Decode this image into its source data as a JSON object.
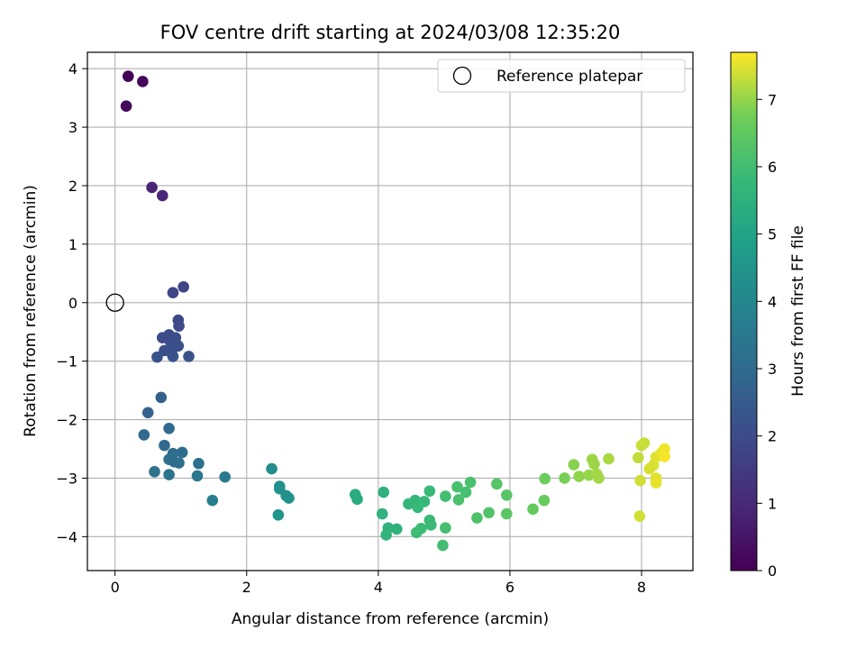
{
  "chart_data": {
    "type": "scatter",
    "title": "FOV centre drift starting at 2024/03/08 12:35:20",
    "xlabel": "Angular distance from reference (arcmin)",
    "ylabel": "Rotation from reference (arcmin)",
    "xlim": [
      -0.42,
      8.78
    ],
    "ylim": [
      -4.58,
      4.28
    ],
    "xticks": [
      0,
      2,
      4,
      6,
      8
    ],
    "yticks": [
      -4,
      -3,
      -2,
      -1,
      0,
      1,
      2,
      3,
      4
    ],
    "grid": true,
    "legend": {
      "position": "top-right",
      "entries": [
        "Reference platepar"
      ]
    },
    "reference": {
      "x": 0,
      "y": 0
    },
    "colorbar": {
      "label": "Hours from first FF file",
      "range": [
        0,
        7.7
      ],
      "ticks": [
        0,
        1,
        2,
        3,
        4,
        5,
        6,
        7
      ],
      "colormap": "viridis"
    },
    "points": [
      {
        "x": 0.2,
        "y": 3.87,
        "t": 0.1
      },
      {
        "x": 0.42,
        "y": 3.78,
        "t": 0.15
      },
      {
        "x": 0.17,
        "y": 3.36,
        "t": 0.2
      },
      {
        "x": 0.56,
        "y": 1.97,
        "t": 0.9
      },
      {
        "x": 0.72,
        "y": 1.83,
        "t": 0.95
      },
      {
        "x": 1.04,
        "y": 0.27,
        "t": 1.75
      },
      {
        "x": 0.88,
        "y": 0.17,
        "t": 1.8
      },
      {
        "x": 0.96,
        "y": -0.3,
        "t": 1.9
      },
      {
        "x": 0.97,
        "y": -0.4,
        "t": 1.95
      },
      {
        "x": 0.82,
        "y": -0.55,
        "t": 2.0
      },
      {
        "x": 0.72,
        "y": -0.6,
        "t": 2.0
      },
      {
        "x": 0.92,
        "y": -0.6,
        "t": 2.05
      },
      {
        "x": 0.84,
        "y": -0.66,
        "t": 2.05
      },
      {
        "x": 0.88,
        "y": -0.72,
        "t": 2.1
      },
      {
        "x": 0.96,
        "y": -0.74,
        "t": 2.1
      },
      {
        "x": 0.75,
        "y": -0.82,
        "t": 2.15
      },
      {
        "x": 0.86,
        "y": -0.86,
        "t": 2.15
      },
      {
        "x": 0.64,
        "y": -0.93,
        "t": 2.2
      },
      {
        "x": 0.88,
        "y": -0.92,
        "t": 2.2
      },
      {
        "x": 1.12,
        "y": -0.92,
        "t": 2.25
      },
      {
        "x": 0.7,
        "y": -1.62,
        "t": 2.6
      },
      {
        "x": 0.5,
        "y": -1.88,
        "t": 2.7
      },
      {
        "x": 0.82,
        "y": -2.15,
        "t": 2.9
      },
      {
        "x": 0.44,
        "y": -2.26,
        "t": 2.95
      },
      {
        "x": 0.75,
        "y": -2.44,
        "t": 3.0
      },
      {
        "x": 1.02,
        "y": -2.56,
        "t": 3.05
      },
      {
        "x": 0.88,
        "y": -2.58,
        "t": 3.1
      },
      {
        "x": 0.82,
        "y": -2.68,
        "t": 3.1
      },
      {
        "x": 0.9,
        "y": -2.72,
        "t": 3.15
      },
      {
        "x": 0.97,
        "y": -2.74,
        "t": 3.15
      },
      {
        "x": 1.27,
        "y": -2.75,
        "t": 3.2
      },
      {
        "x": 0.6,
        "y": -2.89,
        "t": 3.25
      },
      {
        "x": 0.82,
        "y": -2.94,
        "t": 3.3
      },
      {
        "x": 1.25,
        "y": -2.96,
        "t": 3.4
      },
      {
        "x": 1.67,
        "y": -2.98,
        "t": 3.55
      },
      {
        "x": 1.48,
        "y": -3.38,
        "t": 3.75
      },
      {
        "x": 2.38,
        "y": -2.84,
        "t": 4.2
      },
      {
        "x": 2.5,
        "y": -3.14,
        "t": 4.3
      },
      {
        "x": 2.5,
        "y": -3.18,
        "t": 4.35
      },
      {
        "x": 2.6,
        "y": -3.3,
        "t": 4.4
      },
      {
        "x": 2.64,
        "y": -3.34,
        "t": 4.45
      },
      {
        "x": 2.48,
        "y": -3.63,
        "t": 4.5
      },
      {
        "x": 3.65,
        "y": -3.28,
        "t": 5.3
      },
      {
        "x": 3.68,
        "y": -3.36,
        "t": 5.35
      },
      {
        "x": 4.08,
        "y": -3.24,
        "t": 5.5
      },
      {
        "x": 4.06,
        "y": -3.61,
        "t": 5.55
      },
      {
        "x": 4.15,
        "y": -3.85,
        "t": 5.6
      },
      {
        "x": 4.28,
        "y": -3.87,
        "t": 5.6
      },
      {
        "x": 4.12,
        "y": -3.97,
        "t": 5.65
      },
      {
        "x": 4.46,
        "y": -3.44,
        "t": 5.7
      },
      {
        "x": 4.56,
        "y": -3.38,
        "t": 5.75
      },
      {
        "x": 4.7,
        "y": -3.4,
        "t": 5.8
      },
      {
        "x": 4.6,
        "y": -3.5,
        "t": 5.8
      },
      {
        "x": 4.78,
        "y": -3.22,
        "t": 5.85
      },
      {
        "x": 4.78,
        "y": -3.72,
        "t": 5.85
      },
      {
        "x": 4.8,
        "y": -3.8,
        "t": 5.9
      },
      {
        "x": 4.65,
        "y": -3.86,
        "t": 5.9
      },
      {
        "x": 4.58,
        "y": -3.93,
        "t": 5.95
      },
      {
        "x": 4.98,
        "y": -4.15,
        "t": 6.0
      },
      {
        "x": 5.02,
        "y": -3.31,
        "t": 6.0
      },
      {
        "x": 5.02,
        "y": -3.85,
        "t": 6.05
      },
      {
        "x": 5.2,
        "y": -3.15,
        "t": 6.1
      },
      {
        "x": 5.33,
        "y": -3.24,
        "t": 6.1
      },
      {
        "x": 5.22,
        "y": -3.37,
        "t": 6.15
      },
      {
        "x": 5.4,
        "y": -3.07,
        "t": 6.15
      },
      {
        "x": 5.5,
        "y": -3.68,
        "t": 6.2
      },
      {
        "x": 5.68,
        "y": -3.59,
        "t": 6.25
      },
      {
        "x": 5.8,
        "y": -3.1,
        "t": 6.3
      },
      {
        "x": 5.95,
        "y": -3.29,
        "t": 6.35
      },
      {
        "x": 5.95,
        "y": -3.61,
        "t": 6.4
      },
      {
        "x": 6.35,
        "y": -3.53,
        "t": 6.55
      },
      {
        "x": 6.52,
        "y": -3.38,
        "t": 6.6
      },
      {
        "x": 6.53,
        "y": -3.01,
        "t": 6.65
      },
      {
        "x": 6.83,
        "y": -3.0,
        "t": 6.8
      },
      {
        "x": 6.97,
        "y": -2.77,
        "t": 6.9
      },
      {
        "x": 7.05,
        "y": -2.97,
        "t": 6.95
      },
      {
        "x": 7.2,
        "y": -2.95,
        "t": 7.0
      },
      {
        "x": 7.25,
        "y": -2.68,
        "t": 7.05
      },
      {
        "x": 7.28,
        "y": -2.76,
        "t": 7.05
      },
      {
        "x": 7.32,
        "y": -2.93,
        "t": 7.1
      },
      {
        "x": 7.35,
        "y": -3.0,
        "t": 7.1
      },
      {
        "x": 7.5,
        "y": -2.67,
        "t": 7.15
      },
      {
        "x": 7.95,
        "y": -2.65,
        "t": 7.3
      },
      {
        "x": 8.0,
        "y": -2.44,
        "t": 7.35
      },
      {
        "x": 8.04,
        "y": -2.4,
        "t": 7.35
      },
      {
        "x": 7.98,
        "y": -3.04,
        "t": 7.4
      },
      {
        "x": 7.97,
        "y": -3.65,
        "t": 7.4
      },
      {
        "x": 8.12,
        "y": -2.84,
        "t": 7.45
      },
      {
        "x": 8.18,
        "y": -2.78,
        "t": 7.45
      },
      {
        "x": 8.22,
        "y": -2.64,
        "t": 7.5
      },
      {
        "x": 8.22,
        "y": -3.0,
        "t": 7.5
      },
      {
        "x": 8.22,
        "y": -3.08,
        "t": 7.55
      },
      {
        "x": 8.3,
        "y": -2.57,
        "t": 7.55
      },
      {
        "x": 8.35,
        "y": -2.5,
        "t": 7.6
      },
      {
        "x": 8.35,
        "y": -2.63,
        "t": 7.65
      }
    ]
  }
}
